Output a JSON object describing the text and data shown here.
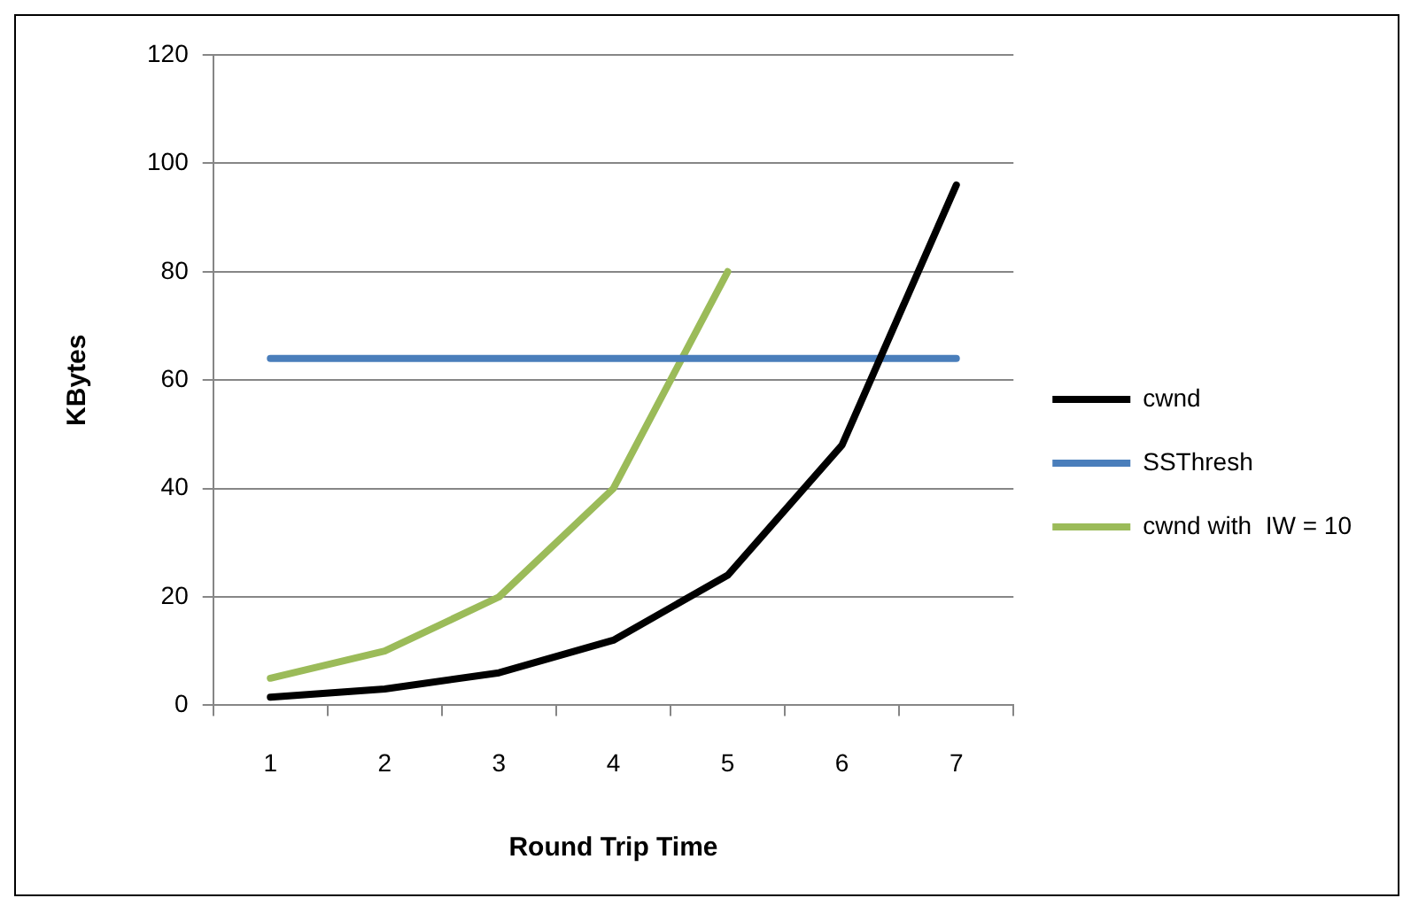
{
  "chart_data": {
    "type": "line",
    "xlabel": "Round Trip Time",
    "ylabel": "KBytes",
    "categories": [
      "1",
      "2",
      "3",
      "4",
      "5",
      "6",
      "7"
    ],
    "series": [
      {
        "name": "cwnd",
        "color": "#000000",
        "values": [
          1.5,
          3,
          6,
          12,
          24,
          48,
          96
        ]
      },
      {
        "name": "SSThresh",
        "color": "#4a7ebb",
        "values": [
          64,
          64,
          64,
          64,
          64,
          64,
          64
        ]
      },
      {
        "name": "cwnd with  IW = 10",
        "color": "#9bbb59",
        "values": [
          5,
          10,
          20,
          40,
          80,
          null,
          null
        ]
      }
    ],
    "ylim": [
      0,
      120
    ],
    "yticks": [
      0,
      20,
      40,
      60,
      80,
      100,
      120
    ],
    "grid": "y",
    "legend": "right",
    "marker": "none"
  }
}
